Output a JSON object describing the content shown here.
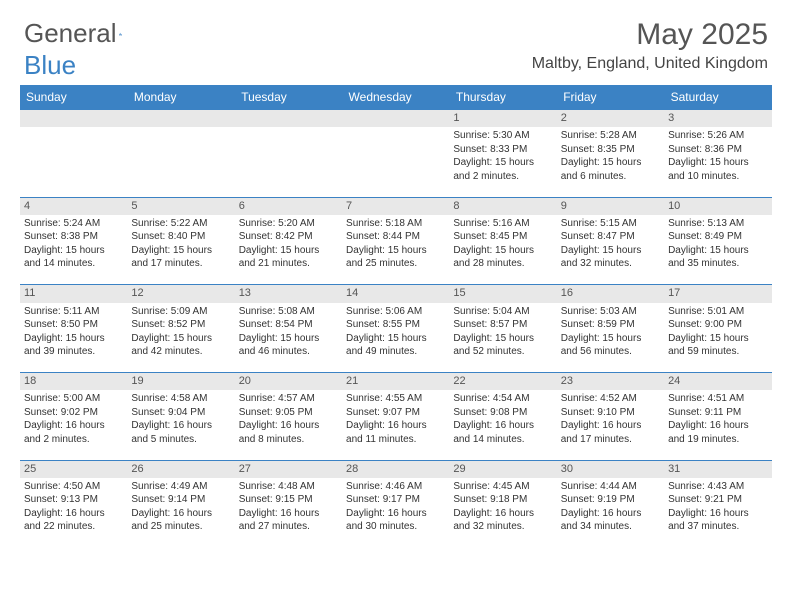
{
  "brand": {
    "part1": "General",
    "part2": "Blue"
  },
  "title": "May 2025",
  "location": "Maltby, England, United Kingdom",
  "colors": {
    "brand_blue": "#3b82c4",
    "daynum_bg": "#e8e8e8",
    "text": "#333333",
    "header_text": "#555555",
    "bg": "#ffffff"
  },
  "weekdays": [
    "Sunday",
    "Monday",
    "Tuesday",
    "Wednesday",
    "Thursday",
    "Friday",
    "Saturday"
  ],
  "weeks": [
    [
      null,
      null,
      null,
      null,
      {
        "n": "1",
        "sr": "5:30 AM",
        "ss": "8:33 PM",
        "dl": "15 hours and 2 minutes."
      },
      {
        "n": "2",
        "sr": "5:28 AM",
        "ss": "8:35 PM",
        "dl": "15 hours and 6 minutes."
      },
      {
        "n": "3",
        "sr": "5:26 AM",
        "ss": "8:36 PM",
        "dl": "15 hours and 10 minutes."
      }
    ],
    [
      {
        "n": "4",
        "sr": "5:24 AM",
        "ss": "8:38 PM",
        "dl": "15 hours and 14 minutes."
      },
      {
        "n": "5",
        "sr": "5:22 AM",
        "ss": "8:40 PM",
        "dl": "15 hours and 17 minutes."
      },
      {
        "n": "6",
        "sr": "5:20 AM",
        "ss": "8:42 PM",
        "dl": "15 hours and 21 minutes."
      },
      {
        "n": "7",
        "sr": "5:18 AM",
        "ss": "8:44 PM",
        "dl": "15 hours and 25 minutes."
      },
      {
        "n": "8",
        "sr": "5:16 AM",
        "ss": "8:45 PM",
        "dl": "15 hours and 28 minutes."
      },
      {
        "n": "9",
        "sr": "5:15 AM",
        "ss": "8:47 PM",
        "dl": "15 hours and 32 minutes."
      },
      {
        "n": "10",
        "sr": "5:13 AM",
        "ss": "8:49 PM",
        "dl": "15 hours and 35 minutes."
      }
    ],
    [
      {
        "n": "11",
        "sr": "5:11 AM",
        "ss": "8:50 PM",
        "dl": "15 hours and 39 minutes."
      },
      {
        "n": "12",
        "sr": "5:09 AM",
        "ss": "8:52 PM",
        "dl": "15 hours and 42 minutes."
      },
      {
        "n": "13",
        "sr": "5:08 AM",
        "ss": "8:54 PM",
        "dl": "15 hours and 46 minutes."
      },
      {
        "n": "14",
        "sr": "5:06 AM",
        "ss": "8:55 PM",
        "dl": "15 hours and 49 minutes."
      },
      {
        "n": "15",
        "sr": "5:04 AM",
        "ss": "8:57 PM",
        "dl": "15 hours and 52 minutes."
      },
      {
        "n": "16",
        "sr": "5:03 AM",
        "ss": "8:59 PM",
        "dl": "15 hours and 56 minutes."
      },
      {
        "n": "17",
        "sr": "5:01 AM",
        "ss": "9:00 PM",
        "dl": "15 hours and 59 minutes."
      }
    ],
    [
      {
        "n": "18",
        "sr": "5:00 AM",
        "ss": "9:02 PM",
        "dl": "16 hours and 2 minutes."
      },
      {
        "n": "19",
        "sr": "4:58 AM",
        "ss": "9:04 PM",
        "dl": "16 hours and 5 minutes."
      },
      {
        "n": "20",
        "sr": "4:57 AM",
        "ss": "9:05 PM",
        "dl": "16 hours and 8 minutes."
      },
      {
        "n": "21",
        "sr": "4:55 AM",
        "ss": "9:07 PM",
        "dl": "16 hours and 11 minutes."
      },
      {
        "n": "22",
        "sr": "4:54 AM",
        "ss": "9:08 PM",
        "dl": "16 hours and 14 minutes."
      },
      {
        "n": "23",
        "sr": "4:52 AM",
        "ss": "9:10 PM",
        "dl": "16 hours and 17 minutes."
      },
      {
        "n": "24",
        "sr": "4:51 AM",
        "ss": "9:11 PM",
        "dl": "16 hours and 19 minutes."
      }
    ],
    [
      {
        "n": "25",
        "sr": "4:50 AM",
        "ss": "9:13 PM",
        "dl": "16 hours and 22 minutes."
      },
      {
        "n": "26",
        "sr": "4:49 AM",
        "ss": "9:14 PM",
        "dl": "16 hours and 25 minutes."
      },
      {
        "n": "27",
        "sr": "4:48 AM",
        "ss": "9:15 PM",
        "dl": "16 hours and 27 minutes."
      },
      {
        "n": "28",
        "sr": "4:46 AM",
        "ss": "9:17 PM",
        "dl": "16 hours and 30 minutes."
      },
      {
        "n": "29",
        "sr": "4:45 AM",
        "ss": "9:18 PM",
        "dl": "16 hours and 32 minutes."
      },
      {
        "n": "30",
        "sr": "4:44 AM",
        "ss": "9:19 PM",
        "dl": "16 hours and 34 minutes."
      },
      {
        "n": "31",
        "sr": "4:43 AM",
        "ss": "9:21 PM",
        "dl": "16 hours and 37 minutes."
      }
    ]
  ],
  "labels": {
    "sunrise": "Sunrise:",
    "sunset": "Sunset:",
    "daylight": "Daylight:"
  }
}
